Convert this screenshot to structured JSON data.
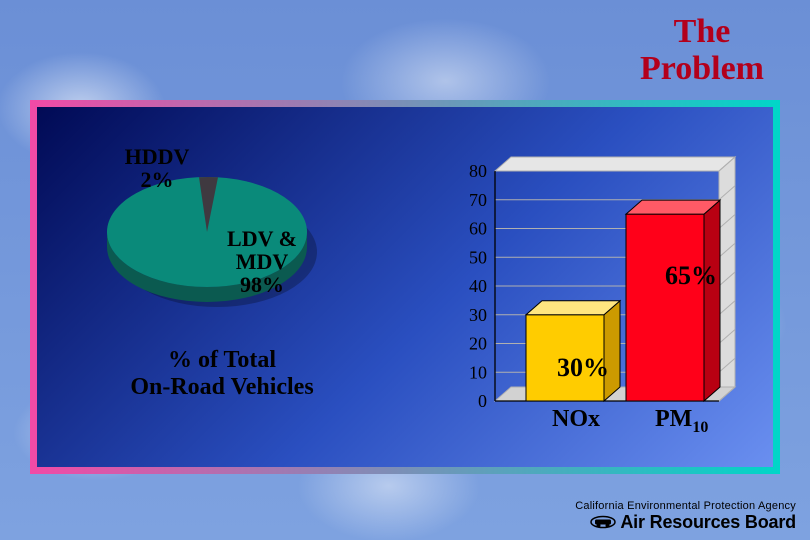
{
  "title": {
    "line1": "The",
    "line2": "Problem",
    "color": "#b3001b",
    "fontsize": 34
  },
  "panel": {
    "gradient_outer_from": "#f24aa6",
    "gradient_outer_to": "#00d6c8",
    "gradient_inner_from": "#010a55",
    "gradient_inner_mid": "#2a4fc0",
    "gradient_inner_to": "#6a8ff0"
  },
  "pie": {
    "type": "pie",
    "slices": [
      {
        "label_line1": "HDDV",
        "label_line2": "2%",
        "value": 2,
        "color": "#3f3940"
      },
      {
        "label_line1": "LDV &",
        "label_line2": "MDV",
        "label_line3": "98%",
        "value": 98,
        "color": "#0a8a7a"
      }
    ],
    "side_color": "#0b5a50",
    "label_color": "#000000",
    "label_fontsize": 22,
    "caption_line1": "% of Total",
    "caption_line2": "On-Road Vehicles",
    "caption_fontsize": 24
  },
  "bar": {
    "type": "bar-3d",
    "categories": [
      "NOx",
      "PM10"
    ],
    "values": [
      30,
      65
    ],
    "value_labels": [
      "30%",
      "65%"
    ],
    "bar_colors": [
      "#ffcc00",
      "#ff0019"
    ],
    "bar_side_colors": [
      "#cc9a00",
      "#b80012"
    ],
    "bar_top_colors": [
      "#ffe680",
      "#ff5a66"
    ],
    "ylim": [
      0,
      80
    ],
    "ytick_step": 10,
    "ytick_labels": [
      "0",
      "10",
      "20",
      "30",
      "40",
      "50",
      "60",
      "70",
      "80"
    ],
    "grid_color": "#b0b0b0",
    "label_fontsize": 26,
    "category_fontsize": 24
  },
  "footer": {
    "agency": "California Environmental Protection Agency",
    "board": "Air Resources Board"
  },
  "background": {
    "sky_from": "#6b8fd6",
    "sky_to": "#7ea2e0",
    "cloud_color": "#ffffff"
  }
}
